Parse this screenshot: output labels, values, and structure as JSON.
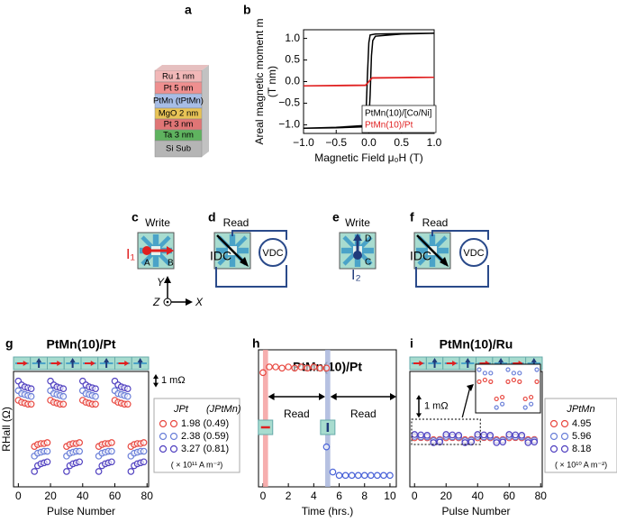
{
  "panels": [
    "a",
    "b",
    "c",
    "d",
    "e",
    "f",
    "g",
    "h",
    "i"
  ],
  "diagrams": {
    "a": {
      "layers": [
        "Ru 1 nm",
        "Pt 5 nm",
        "PtMn (tPtMn)",
        "MgO 2 nm",
        "Pt 3 nm",
        "Ta 3 nm",
        "Si Sub"
      ]
    },
    "c": {
      "title": "Write",
      "current": "I₁",
      "start": "A",
      "end": "B"
    },
    "d": {
      "title": "Read",
      "current": "IDC",
      "voltage": "VDC"
    },
    "e": {
      "title": "Write",
      "current": "I₂",
      "start": "C",
      "end": "D"
    },
    "f": {
      "title": "Read",
      "current": "IDC",
      "voltage": "VDC"
    },
    "axes": [
      "Y",
      "Z",
      "X"
    ]
  },
  "chart_data": [
    {
      "type": "line",
      "xlabel": "Magnetic Field μ₀H (T)",
      "ylabel": [
        "Areal magnetic moment m",
        "(T nm)"
      ],
      "xlim": [
        -1,
        1
      ],
      "ylim": [
        -1.2,
        1.2
      ],
      "xticks": [
        {
          "value": -1,
          "label": "−1.0"
        },
        {
          "value": -0.5,
          "label": "−0.5"
        },
        {
          "value": 0,
          "label": "0.0"
        },
        {
          "value": 0.5,
          "label": "0.5"
        },
        {
          "value": 1,
          "label": "1.0"
        }
      ],
      "yticks": [
        {
          "value": -1,
          "label": "−1.0"
        },
        {
          "value": -0.5,
          "label": "−0.5"
        },
        {
          "value": 0,
          "label": "0.0"
        },
        {
          "value": 0.5,
          "label": "0.5"
        },
        {
          "value": 1,
          "label": "1.0"
        }
      ],
      "legend": "lower right",
      "series": [
        {
          "name": "PtMn(10)/[Co/Ni]",
          "color": "#000000",
          "x": [
            -1,
            -0.5,
            -0.1,
            -0.02,
            0,
            0.02,
            0.04,
            0.06,
            0.1,
            0.5,
            1,
            1,
            0.5,
            0.1,
            0.02,
            0,
            -0.02,
            -0.04,
            -0.06,
            -0.1,
            -0.5,
            -1
          ],
          "values": [
            -1.08,
            -1.07,
            -1.05,
            -1.04,
            -0.9,
            -0.3,
            0.6,
            0.95,
            1.05,
            1.1,
            1.12,
            1.12,
            1.11,
            1.1,
            1.08,
            0.9,
            0.2,
            -0.6,
            -0.95,
            -1.02,
            -1.06,
            -1.08
          ]
        },
        {
          "name": "PtMn(10)/Pt",
          "color": "#e02020",
          "x": [
            -1,
            -0.05,
            0,
            0.05,
            1,
            0.05,
            0,
            -0.05,
            -1
          ],
          "values": [
            -0.1,
            -0.09,
            0,
            0.08,
            0.1,
            0.09,
            0,
            -0.08,
            -0.1
          ]
        }
      ]
    },
    {
      "type": "scatter",
      "title": "PtMn(10)/Pt",
      "xlabel": "Pulse Number",
      "ylabel": "RHall (Ω)",
      "xlim": [
        -3,
        81
      ],
      "ylim": [
        0,
        12
      ],
      "xticks": [
        0,
        20,
        40,
        60,
        80
      ],
      "scale_bar": {
        "value": 1,
        "label": "1 mΩ"
      },
      "legend_title": [
        "JPt",
        "(JPtMn)"
      ],
      "legend_note": "( × 10¹¹ A m⁻²)",
      "x": [
        0,
        2,
        4,
        6,
        8,
        10,
        12,
        14,
        16,
        18,
        20,
        22,
        24,
        26,
        28,
        30,
        32,
        34,
        36,
        38,
        40,
        42,
        44,
        46,
        48,
        50,
        52,
        54,
        56,
        58,
        60,
        62,
        64,
        66,
        68,
        70,
        72,
        74,
        76,
        78
      ],
      "series": [
        {
          "name": "1.98 (0.49)",
          "color": "#e8473f",
          "values": [
            9.0,
            8.8,
            8.7,
            8.6,
            8.6,
            4.2,
            4.4,
            4.5,
            4.5,
            4.6,
            9.0,
            8.8,
            8.7,
            8.6,
            8.6,
            4.2,
            4.4,
            4.5,
            4.5,
            4.6,
            9.0,
            8.8,
            8.7,
            8.6,
            8.6,
            4.2,
            4.4,
            4.5,
            4.5,
            4.6,
            9.0,
            8.8,
            8.7,
            8.6,
            8.6,
            4.2,
            4.4,
            4.5,
            4.5,
            4.6
          ]
        },
        {
          "name": "2.38 (0.59)",
          "color": "#6a7fd8",
          "values": [
            10.0,
            9.7,
            9.6,
            9.5,
            9.4,
            3.2,
            3.5,
            3.6,
            3.7,
            3.7,
            10.0,
            9.7,
            9.6,
            9.5,
            9.4,
            3.2,
            3.5,
            3.6,
            3.7,
            3.7,
            10.0,
            9.7,
            9.6,
            9.5,
            9.4,
            3.2,
            3.5,
            3.6,
            3.7,
            3.7,
            10.0,
            9.7,
            9.6,
            9.5,
            9.4,
            3.2,
            3.5,
            3.6,
            3.7,
            3.7
          ]
        },
        {
          "name": "3.27 (0.81)",
          "color": "#5040c0",
          "values": [
            11.0,
            10.6,
            10.4,
            10.3,
            10.2,
            1.6,
            2.2,
            2.4,
            2.5,
            2.6,
            11.0,
            10.6,
            10.4,
            10.3,
            10.2,
            1.6,
            2.2,
            2.4,
            2.5,
            2.6,
            11.0,
            10.6,
            10.4,
            10.3,
            10.2,
            1.6,
            2.2,
            2.4,
            2.5,
            2.6,
            11.0,
            10.6,
            10.4,
            10.3,
            10.2,
            1.6,
            2.2,
            2.4,
            2.5,
            2.6
          ]
        }
      ]
    },
    {
      "type": "scatter",
      "title": "PtMn(10)/Pt",
      "xlabel": "Time (hrs.)",
      "xlim": [
        -0.35,
        10.5
      ],
      "ylim": [
        0,
        12
      ],
      "xticks": [
        0,
        2,
        4,
        6,
        8,
        10
      ],
      "spans": [
        {
          "xlim": [
            0,
            0.4
          ],
          "color": "#f4a0a0"
        },
        {
          "xlim": [
            4.9,
            5.3
          ],
          "color": "#a9b6dc"
        }
      ],
      "annotations": [
        "Read",
        "Read"
      ],
      "x": [
        0,
        0.5,
        1,
        1.5,
        2,
        2.5,
        3,
        3.5,
        4,
        4.5,
        5,
        5.5,
        6,
        6.5,
        7,
        7.5,
        8,
        8.5,
        9,
        9.5,
        10
      ],
      "series": [
        {
          "color": "#e8473f",
          "values": [
            10.0,
            10.5,
            10.5,
            10.4,
            10.5,
            10.4,
            10.5,
            10.4,
            10.5,
            10.4,
            10.4,
            null,
            null,
            null,
            null,
            null,
            null,
            null,
            null,
            null,
            null
          ]
        },
        {
          "color": "#4a63d8",
          "values": [
            null,
            null,
            null,
            null,
            null,
            null,
            null,
            null,
            null,
            null,
            3.5,
            1.3,
            1.0,
            1.0,
            1.0,
            1.0,
            1.0,
            1.0,
            1.0,
            1.0,
            1.0
          ]
        }
      ]
    },
    {
      "type": "scatter",
      "title": "PtMn(10)/Ru",
      "xlabel": "Pulse Number",
      "xlim": [
        -3,
        81
      ],
      "ylim": [
        0,
        6
      ],
      "xticks": [
        0,
        20,
        40,
        60,
        80
      ],
      "scale_bar": {
        "value": 1,
        "label": "1 mΩ"
      },
      "legend_title": "JPtMn",
      "legend_note": "( × 10¹⁰ A m⁻²)",
      "x": [
        0,
        4,
        8,
        12,
        16,
        20,
        24,
        28,
        32,
        36,
        40,
        44,
        48,
        52,
        56,
        60,
        64,
        68,
        72,
        76
      ],
      "series": [
        {
          "name": "4.95",
          "color": "#e8473f",
          "values": [
            2.55,
            2.56,
            2.55,
            2.45,
            2.46,
            2.55,
            2.56,
            2.55,
            2.45,
            2.46,
            2.55,
            2.56,
            2.55,
            2.45,
            2.46,
            2.55,
            2.56,
            2.55,
            2.45,
            2.46
          ]
        },
        {
          "name": "5.96",
          "color": "#6a7fd8",
          "values": [
            2.62,
            2.6,
            2.6,
            2.4,
            2.42,
            2.62,
            2.6,
            2.6,
            2.4,
            2.42,
            2.62,
            2.6,
            2.6,
            2.4,
            2.42,
            2.62,
            2.6,
            2.6,
            2.4,
            2.42
          ]
        },
        {
          "name": "8.18",
          "color": "#5040c0",
          "values": [
            2.72,
            2.7,
            2.68,
            2.3,
            2.33,
            2.72,
            2.7,
            2.68,
            2.3,
            2.33,
            2.72,
            2.7,
            2.68,
            2.3,
            2.33,
            2.72,
            2.7,
            2.68,
            2.3,
            2.33
          ]
        }
      ]
    }
  ]
}
